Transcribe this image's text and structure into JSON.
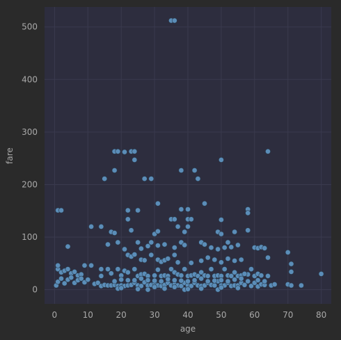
{
  "chart_data": {
    "type": "scatter",
    "title": "",
    "xlabel": "age",
    "ylabel": "fare",
    "xlim": [
      -3,
      83
    ],
    "ylim": [
      -27,
      538
    ],
    "xticks": [
      0,
      10,
      20,
      30,
      40,
      50,
      60,
      70,
      80
    ],
    "yticks": [
      0,
      100,
      200,
      300,
      400,
      500
    ],
    "grid": true,
    "colors": {
      "background": "#2a2a2a",
      "plot_area": "#2d2d3e",
      "grid": "#3a3a4e",
      "point_fill": "#5b8db8",
      "point_edge": "#2a3b4d",
      "text": "#a9a9a9"
    },
    "series": [
      {
        "points": [
          [
            35,
            512
          ],
          [
            36,
            512
          ],
          [
            18,
            263
          ],
          [
            19,
            263
          ],
          [
            23,
            263
          ],
          [
            24,
            263
          ],
          [
            21,
            262
          ],
          [
            64,
            263
          ],
          [
            24,
            247
          ],
          [
            50,
            247
          ],
          [
            18,
            227
          ],
          [
            38,
            227
          ],
          [
            42,
            227
          ],
          [
            15,
            211
          ],
          [
            27,
            211
          ],
          [
            29,
            211
          ],
          [
            43,
            211
          ],
          [
            31,
            164
          ],
          [
            45,
            164
          ],
          [
            1,
            151
          ],
          [
            2,
            151
          ],
          [
            22,
            151
          ],
          [
            25,
            151
          ],
          [
            38,
            153
          ],
          [
            40,
            153
          ],
          [
            58,
            153
          ],
          [
            58,
            146
          ],
          [
            22,
            134
          ],
          [
            35,
            134
          ],
          [
            36,
            134
          ],
          [
            40,
            134
          ],
          [
            41,
            134
          ],
          [
            50,
            133
          ],
          [
            11,
            120
          ],
          [
            14,
            120
          ],
          [
            37,
            120
          ],
          [
            40,
            120
          ],
          [
            17,
            110
          ],
          [
            18,
            108
          ],
          [
            23,
            113
          ],
          [
            30,
            106
          ],
          [
            31,
            111
          ],
          [
            39,
            110
          ],
          [
            49,
            110
          ],
          [
            50,
            106
          ],
          [
            58,
            113
          ],
          [
            54,
            110
          ],
          [
            4,
            82
          ],
          [
            16,
            86
          ],
          [
            19,
            90
          ],
          [
            21,
            77
          ],
          [
            25,
            90
          ],
          [
            26,
            78
          ],
          [
            28,
            83
          ],
          [
            29,
            90
          ],
          [
            31,
            84
          ],
          [
            33,
            86
          ],
          [
            36,
            80
          ],
          [
            38,
            90
          ],
          [
            39,
            85
          ],
          [
            44,
            90
          ],
          [
            45,
            86
          ],
          [
            47,
            80
          ],
          [
            49,
            77
          ],
          [
            51,
            80
          ],
          [
            52,
            90
          ],
          [
            53,
            81
          ],
          [
            55,
            85
          ],
          [
            60,
            80
          ],
          [
            61,
            79
          ],
          [
            62,
            81
          ],
          [
            63,
            79
          ],
          [
            70,
            71
          ],
          [
            22,
            66
          ],
          [
            23,
            63
          ],
          [
            24,
            67
          ],
          [
            26,
            57
          ],
          [
            27,
            56
          ],
          [
            29,
            66
          ],
          [
            31,
            57
          ],
          [
            32,
            53
          ],
          [
            33,
            56
          ],
          [
            34,
            59
          ],
          [
            36,
            66
          ],
          [
            37,
            52
          ],
          [
            41,
            51
          ],
          [
            44,
            55
          ],
          [
            46,
            61
          ],
          [
            48,
            57
          ],
          [
            50,
            52
          ],
          [
            52,
            59
          ],
          [
            54,
            55
          ],
          [
            56,
            57
          ],
          [
            64,
            61
          ],
          [
            71,
            49
          ],
          [
            71,
            34
          ],
          [
            58,
            29
          ],
          [
            1,
            39
          ],
          [
            1,
            46
          ],
          [
            2,
            33
          ],
          [
            3,
            36
          ],
          [
            4,
            39
          ],
          [
            5,
            31
          ],
          [
            6,
            34
          ],
          [
            7,
            27
          ],
          [
            8,
            29
          ],
          [
            9,
            46
          ],
          [
            11,
            46
          ],
          [
            14,
            39
          ],
          [
            14,
            26
          ],
          [
            16,
            39
          ],
          [
            17,
            31
          ],
          [
            19,
            39
          ],
          [
            20,
            27
          ],
          [
            21,
            36
          ],
          [
            22,
            33
          ],
          [
            24,
            39
          ],
          [
            25,
            26
          ],
          [
            26,
            29
          ],
          [
            27,
            30
          ],
          [
            28,
            26
          ],
          [
            30,
            27
          ],
          [
            31,
            38
          ],
          [
            32,
            26
          ],
          [
            33,
            27
          ],
          [
            34,
            26
          ],
          [
            35,
            39
          ],
          [
            36,
            33
          ],
          [
            37,
            29
          ],
          [
            38,
            27
          ],
          [
            39,
            39
          ],
          [
            40,
            26
          ],
          [
            41,
            27
          ],
          [
            42,
            29
          ],
          [
            43,
            26
          ],
          [
            44,
            33
          ],
          [
            45,
            27
          ],
          [
            46,
            26
          ],
          [
            47,
            39
          ],
          [
            48,
            26
          ],
          [
            49,
            27
          ],
          [
            50,
            26
          ],
          [
            51,
            39
          ],
          [
            52,
            27
          ],
          [
            53,
            26
          ],
          [
            54,
            33
          ],
          [
            55,
            26
          ],
          [
            56,
            27
          ],
          [
            57,
            30
          ],
          [
            59,
            39
          ],
          [
            60,
            26
          ],
          [
            61,
            30
          ],
          [
            62,
            27
          ],
          [
            64,
            26
          ],
          [
            0.5,
            8
          ],
          [
            1,
            15
          ],
          [
            2,
            21
          ],
          [
            3,
            12
          ],
          [
            4,
            19
          ],
          [
            5,
            23
          ],
          [
            6,
            13
          ],
          [
            7,
            18
          ],
          [
            8,
            21
          ],
          [
            9,
            14
          ],
          [
            10,
            19
          ],
          [
            12,
            11
          ],
          [
            13,
            13
          ],
          [
            14,
            7
          ],
          [
            15,
            9
          ],
          [
            16,
            8
          ],
          [
            17,
            8
          ],
          [
            18,
            9
          ],
          [
            19,
            7
          ],
          [
            20,
            8
          ],
          [
            21,
            7
          ],
          [
            22,
            8
          ],
          [
            23,
            9
          ],
          [
            24,
            13
          ],
          [
            25,
            8
          ],
          [
            26,
            7
          ],
          [
            27,
            14
          ],
          [
            28,
            8
          ],
          [
            29,
            9
          ],
          [
            30,
            13
          ],
          [
            31,
            8
          ],
          [
            32,
            7
          ],
          [
            33,
            9
          ],
          [
            34,
            13
          ],
          [
            35,
            8
          ],
          [
            36,
            10
          ],
          [
            37,
            8
          ],
          [
            38,
            7
          ],
          [
            39,
            13
          ],
          [
            40,
            8
          ],
          [
            41,
            7
          ],
          [
            42,
            13
          ],
          [
            43,
            8
          ],
          [
            44,
            7
          ],
          [
            45,
            8
          ],
          [
            46,
            13
          ],
          [
            47,
            9
          ],
          [
            48,
            8
          ],
          [
            49,
            16
          ],
          [
            50,
            8
          ],
          [
            51,
            8
          ],
          [
            52,
            13
          ],
          [
            53,
            7
          ],
          [
            54,
            8
          ],
          [
            55,
            8
          ],
          [
            56,
            13
          ],
          [
            57,
            9
          ],
          [
            59,
            7
          ],
          [
            60,
            13
          ],
          [
            61,
            6
          ],
          [
            62,
            10
          ],
          [
            63,
            9
          ],
          [
            65,
            8
          ],
          [
            66,
            10
          ],
          [
            70,
            10
          ],
          [
            71,
            8
          ],
          [
            74,
            8
          ],
          [
            80,
            30
          ],
          [
            19,
            2
          ],
          [
            20,
            3
          ],
          [
            25,
            1
          ],
          [
            28,
            0
          ],
          [
            30,
            5
          ],
          [
            33,
            2
          ],
          [
            36,
            5
          ],
          [
            39,
            0
          ],
          [
            40,
            1
          ],
          [
            44,
            2
          ],
          [
            49,
            0
          ],
          [
            50,
            4
          ],
          [
            55,
            3
          ],
          [
            18,
            16
          ],
          [
            20,
            19
          ],
          [
            22,
            18
          ],
          [
            24,
            18
          ],
          [
            26,
            21
          ],
          [
            28,
            18
          ],
          [
            30,
            17
          ],
          [
            32,
            16
          ],
          [
            34,
            20
          ],
          [
            36,
            18
          ],
          [
            38,
            17
          ],
          [
            40,
            16
          ],
          [
            42,
            18
          ],
          [
            44,
            21
          ],
          [
            46,
            16
          ],
          [
            48,
            17
          ],
          [
            50,
            18
          ],
          [
            52,
            16
          ],
          [
            54,
            19
          ],
          [
            56,
            21
          ],
          [
            58,
            16
          ],
          [
            61,
            18
          ],
          [
            63,
            16
          ]
        ]
      }
    ]
  }
}
